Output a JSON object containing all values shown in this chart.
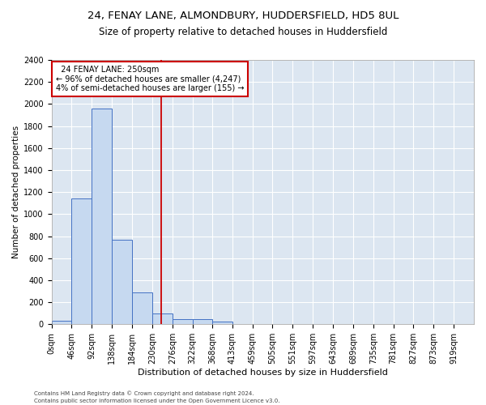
{
  "title1": "24, FENAY LANE, ALMONDBURY, HUDDERSFIELD, HD5 8UL",
  "title2": "Size of property relative to detached houses in Huddersfield",
  "xlabel": "Distribution of detached houses by size in Huddersfield",
  "ylabel": "Number of detached properties",
  "footer1": "Contains HM Land Registry data © Crown copyright and database right 2024.",
  "footer2": "Contains public sector information licensed under the Open Government Licence v3.0.",
  "bar_edges": [
    0,
    46,
    92,
    138,
    184,
    230,
    276,
    322,
    368,
    413,
    459,
    505,
    551,
    597,
    643,
    689,
    735,
    781,
    827,
    873,
    919
  ],
  "bar_heights": [
    30,
    1140,
    1960,
    770,
    290,
    100,
    45,
    45,
    25,
    0,
    0,
    0,
    0,
    0,
    0,
    0,
    0,
    0,
    0,
    0
  ],
  "bar_color": "#c6d9f0",
  "bar_edge_color": "#4472c4",
  "vline_x": 250,
  "vline_color": "#cc0000",
  "annotation_text": "  24 FENAY LANE: 250sqm\n← 96% of detached houses are smaller (4,247)\n4% of semi-detached houses are larger (155) →",
  "annotation_box_color": "#ffffff",
  "annotation_box_edge": "#cc0000",
  "ylim": [
    0,
    2400
  ],
  "yticks": [
    0,
    200,
    400,
    600,
    800,
    1000,
    1200,
    1400,
    1600,
    1800,
    2000,
    2200,
    2400
  ],
  "plot_bg_color": "#dce6f1",
  "title1_fontsize": 9.5,
  "title2_fontsize": 8.5,
  "xlabel_fontsize": 8,
  "ylabel_fontsize": 7.5,
  "tick_fontsize": 7,
  "annotation_fontsize": 7,
  "footer_fontsize": 5
}
